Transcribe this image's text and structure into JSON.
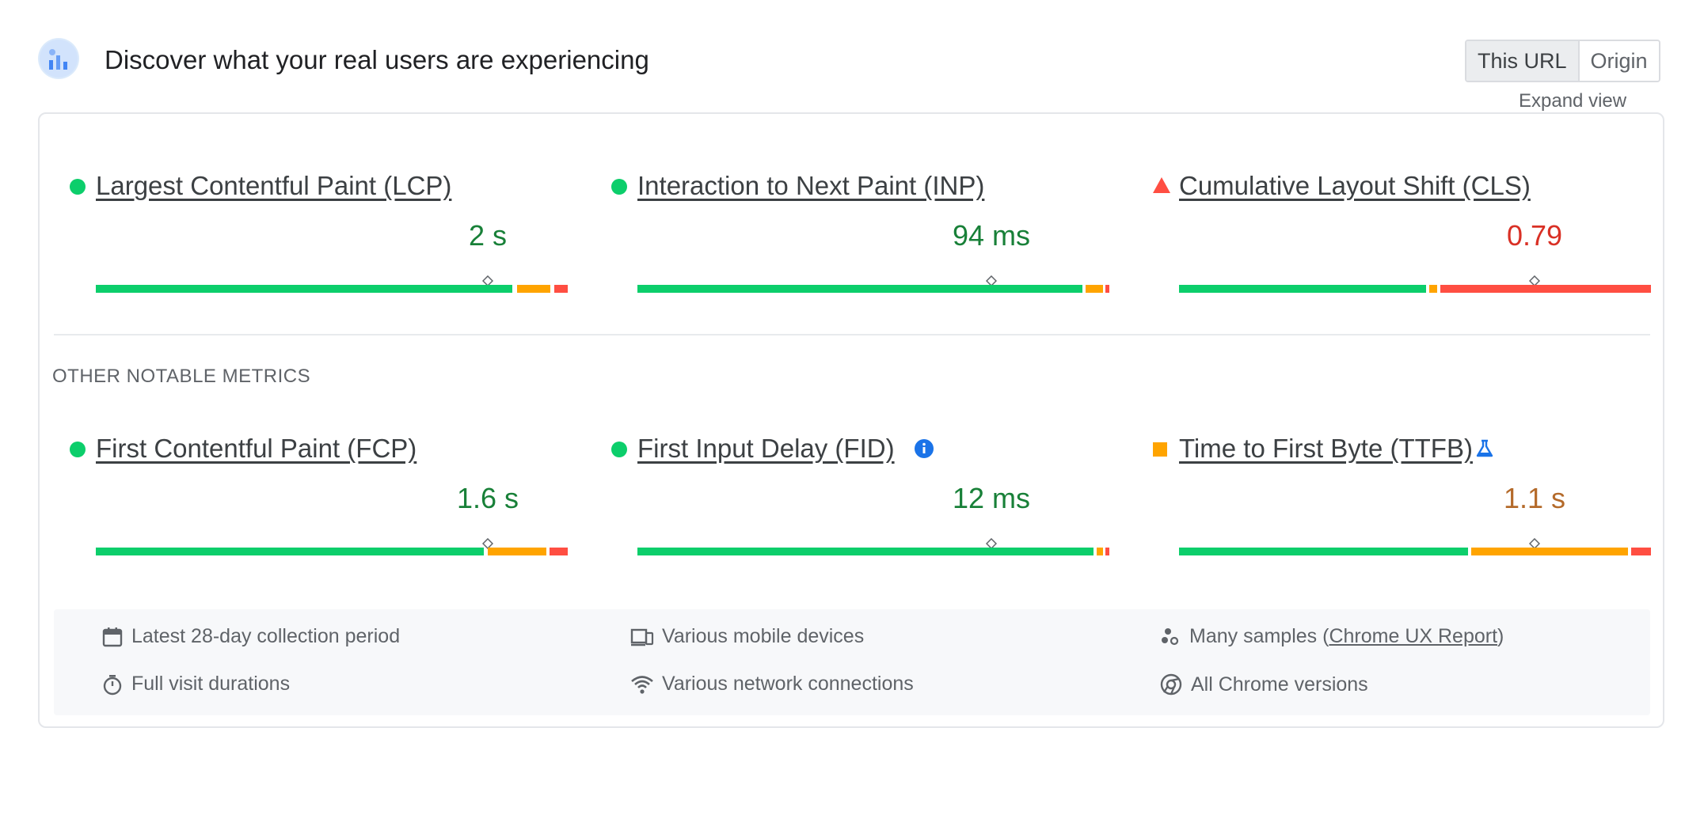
{
  "header": {
    "title": "Discover what your real users are experiencing",
    "toggle": {
      "this_url": "This URL",
      "origin": "Origin",
      "selected": "This URL"
    },
    "expand_view": "Expand view"
  },
  "core_metrics": [
    {
      "name": "Largest Contentful Paint (LCP)",
      "value": "2 s",
      "status": "good",
      "status_icon": "green-dot-icon"
    },
    {
      "name": "Interaction to Next Paint (INP)",
      "value": "94 ms",
      "status": "good",
      "status_icon": "green-dot-icon"
    },
    {
      "name": "Cumulative Layout Shift (CLS)",
      "value": "0.79",
      "status": "poor",
      "status_icon": "red-triangle-icon"
    }
  ],
  "other_metrics_label": "OTHER NOTABLE METRICS",
  "other_metrics": [
    {
      "name": "First Contentful Paint (FCP)",
      "value": "1.6 s",
      "status": "good",
      "status_icon": "green-dot-icon"
    },
    {
      "name": "First Input Delay (FID)",
      "value": "12 ms",
      "status": "good",
      "status_icon": "green-dot-icon",
      "extra_icon": "info-icon"
    },
    {
      "name": "Time to First Byte (TTFB)",
      "value": "1.1 s",
      "status": "needs-improvement",
      "status_icon": "orange-square-icon",
      "extra_icon": "flask-icon"
    }
  ],
  "footer": {
    "collection_period": "Latest 28-day collection period",
    "devices": "Various mobile devices",
    "samples_prefix": "Many samples (",
    "samples_link": "Chrome UX Report",
    "samples_suffix": ")",
    "visit_durations": "Full visit durations",
    "network": "Various network connections",
    "chrome_versions": "All Chrome versions"
  },
  "colors": {
    "good": "#0cce6b",
    "needs_improvement": "#ffa400",
    "poor": "#ff4e42",
    "good_text": "#188038",
    "poor_text": "#d93025",
    "average_text": "#b46a2a"
  }
}
